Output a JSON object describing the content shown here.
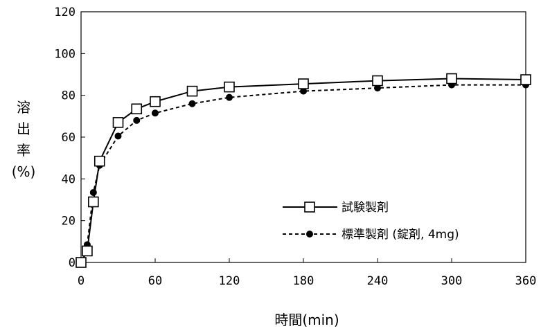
{
  "chart_data": {
    "type": "line",
    "xlabel": "時間(min)",
    "ylabel_lines": [
      "溶",
      "出",
      "率",
      "(%)"
    ],
    "xlim": [
      0,
      360
    ],
    "ylim": [
      0,
      120
    ],
    "xticks": [
      0,
      60,
      120,
      180,
      240,
      300,
      360
    ],
    "yticks": [
      0,
      20,
      40,
      60,
      80,
      100,
      120
    ],
    "grid": false,
    "legend_position": "center-right",
    "series": [
      {
        "name": "試験製剤",
        "marker": "open-square",
        "line": "solid",
        "x": [
          0,
          5,
          10,
          15,
          30,
          45,
          60,
          90,
          120,
          180,
          240,
          300,
          360
        ],
        "y": [
          0,
          5.5,
          29,
          48.5,
          67,
          73.5,
          77,
          82,
          84,
          85.5,
          87,
          88,
          87.5
        ]
      },
      {
        "name": "標準製剤 (錠剤, 4mg)",
        "marker": "filled-circle",
        "line": "dashed",
        "x": [
          0,
          5,
          10,
          15,
          30,
          45,
          60,
          90,
          120,
          180,
          240,
          300,
          360
        ],
        "y": [
          0,
          8.5,
          33.5,
          46.5,
          60.5,
          68,
          71.5,
          76,
          79,
          82,
          83.5,
          85,
          85
        ]
      }
    ]
  }
}
